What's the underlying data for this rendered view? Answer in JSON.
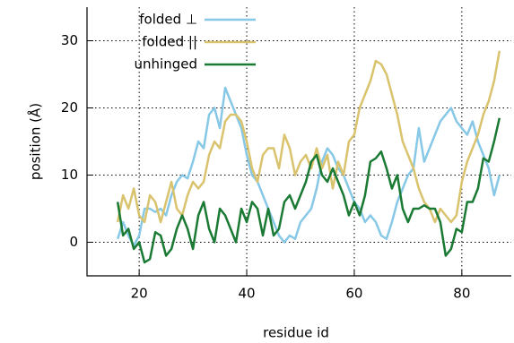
{
  "chart_data": {
    "type": "line",
    "xlabel": "residue id",
    "ylabel": "position (Å)",
    "x": [
      16,
      17,
      18,
      19,
      20,
      21,
      22,
      23,
      24,
      25,
      26,
      27,
      28,
      29,
      30,
      31,
      32,
      33,
      34,
      35,
      36,
      37,
      38,
      39,
      40,
      41,
      42,
      43,
      44,
      45,
      46,
      47,
      48,
      49,
      50,
      51,
      52,
      53,
      54,
      55,
      56,
      57,
      58,
      59,
      60,
      61,
      62,
      63,
      64,
      65,
      66,
      67,
      68,
      69,
      70,
      71,
      72,
      73,
      74,
      75,
      76,
      77,
      78,
      79,
      80,
      81,
      82,
      83,
      84,
      85,
      86,
      87
    ],
    "series": [
      {
        "name": "folded ⊥",
        "color": "#87c8e6",
        "values": [
          0.5,
          3,
          1,
          -0.5,
          1,
          5,
          5,
          4.5,
          5,
          4,
          7,
          9,
          10,
          9.5,
          12,
          15,
          14,
          19,
          20,
          17,
          23,
          21,
          19,
          17,
          13,
          10,
          9,
          7,
          5,
          3,
          1,
          0,
          1,
          0.5,
          3,
          4,
          5,
          8,
          12,
          14,
          13,
          11,
          10,
          8,
          6,
          5,
          3,
          4,
          3,
          1,
          0.5,
          3,
          6,
          8,
          10,
          11,
          17,
          12,
          14,
          16,
          18,
          19,
          20,
          18,
          17,
          16,
          18,
          15,
          13,
          11,
          7,
          10
        ]
      },
      {
        "name": "folded ||",
        "color": "#d9c36e",
        "values": [
          3,
          7,
          5,
          8,
          4,
          3,
          7,
          6,
          3,
          6,
          9,
          5,
          4,
          7,
          9,
          8,
          9,
          13,
          15,
          14,
          18,
          19,
          19,
          18,
          15,
          11,
          9,
          13,
          14,
          14,
          11,
          16,
          14,
          10,
          12,
          13,
          11,
          14,
          11,
          13,
          8,
          12,
          10,
          15,
          16,
          20,
          22,
          24,
          27,
          26.5,
          25,
          22,
          19,
          15,
          13,
          11,
          8,
          6,
          5,
          3,
          5,
          4,
          3,
          4,
          9,
          12,
          14,
          16,
          19,
          21,
          24,
          28.5
        ]
      },
      {
        "name": "unhinged",
        "color": "#1a7a34",
        "values": [
          6,
          1,
          2,
          -1,
          0,
          -3,
          -2.5,
          1.5,
          1,
          -2,
          -1,
          2,
          4,
          2,
          -1,
          4,
          6,
          2,
          0,
          5,
          4,
          2,
          0,
          5,
          3,
          6,
          5,
          1,
          5,
          1,
          2,
          6,
          7,
          5,
          7,
          9,
          12,
          13,
          10,
          9,
          11,
          9,
          7,
          4,
          6,
          4,
          7,
          12,
          12.5,
          13.5,
          11,
          8,
          10,
          5,
          3,
          5,
          5,
          5.5,
          5,
          5,
          3,
          -2,
          -1,
          2,
          1.5,
          6,
          6,
          8,
          12.5,
          12,
          15,
          18.5
        ]
      }
    ],
    "xlim": [
      10.3,
      89.2
    ],
    "ylim": [
      -5,
      35
    ],
    "xticks": [
      20,
      40,
      60,
      80
    ],
    "yticks": [
      0,
      10,
      20,
      30
    ],
    "grid": true,
    "legend": "top"
  }
}
